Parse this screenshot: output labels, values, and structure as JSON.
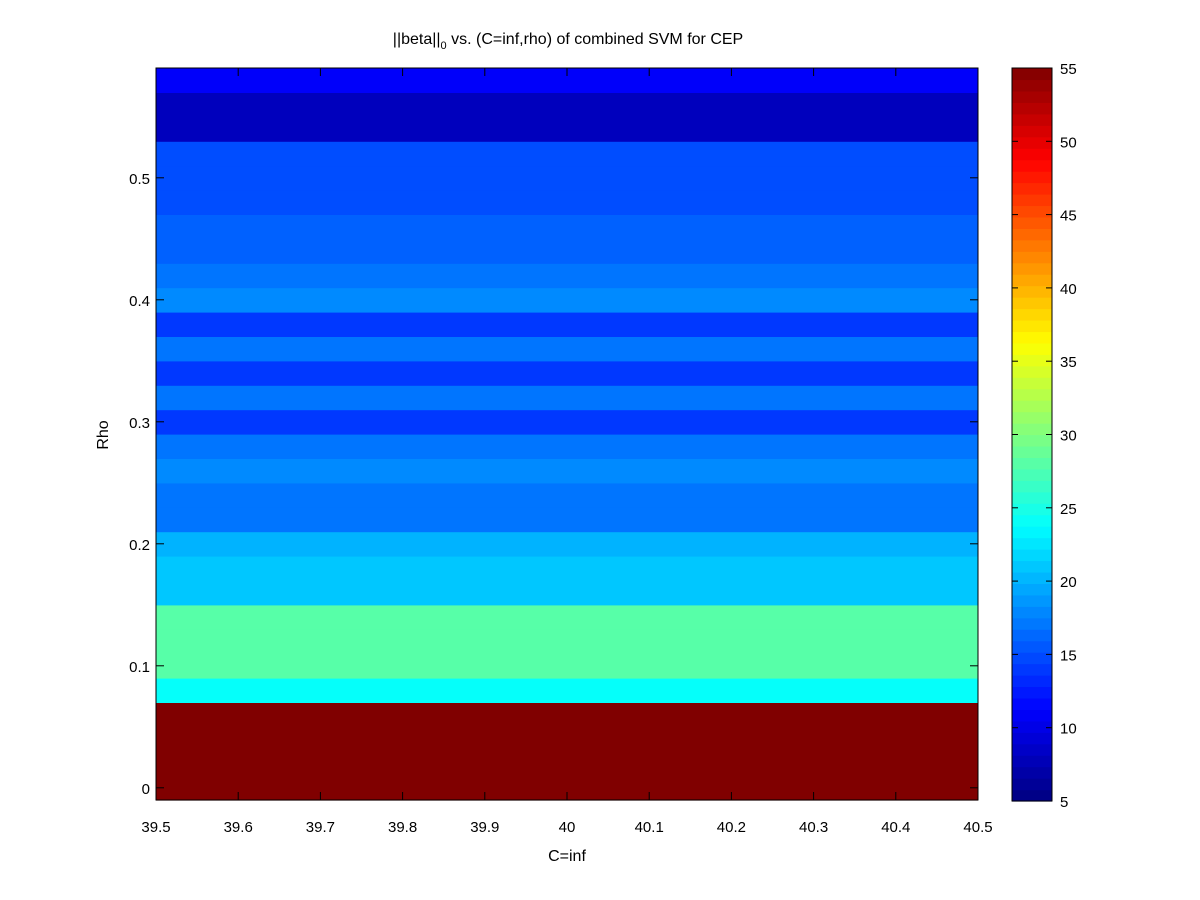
{
  "chart_data": {
    "type": "heatmap",
    "title": {
      "prefix": "||beta||",
      "subscript": "0",
      "suffix": " vs. (C=inf,rho) of combined SVM for CEP"
    },
    "xlabel": "C=inf",
    "ylabel": "Rho",
    "xlim": [
      39.5,
      40.5
    ],
    "ylim": [
      -0.01,
      0.59
    ],
    "xticks": [
      39.5,
      39.6,
      39.7,
      39.8,
      39.9,
      40,
      40.1,
      40.2,
      40.3,
      40.4,
      40.5
    ],
    "xtick_labels": [
      "39.5",
      "39.6",
      "39.7",
      "39.8",
      "39.9",
      "40",
      "40.1",
      "40.2",
      "40.3",
      "40.4",
      "40.5"
    ],
    "yticks": [
      0,
      0.1,
      0.2,
      0.3,
      0.4,
      0.5
    ],
    "ytick_labels": [
      "0",
      "0.1",
      "0.2",
      "0.3",
      "0.4",
      "0.5"
    ],
    "colormap": "jet",
    "colorbar": {
      "clim": [
        5,
        55
      ],
      "ticks": [
        5,
        10,
        15,
        20,
        25,
        30,
        35,
        40,
        45,
        50,
        55
      ],
      "tick_labels": [
        "5",
        "10",
        "15",
        "20",
        "25",
        "30",
        "35",
        "40",
        "45",
        "50",
        "55"
      ]
    },
    "rho": [
      0.0,
      0.02,
      0.04,
      0.06,
      0.08,
      0.1,
      0.12,
      0.14,
      0.16,
      0.18,
      0.2,
      0.22,
      0.24,
      0.26,
      0.28,
      0.3,
      0.32,
      0.34,
      0.36,
      0.38,
      0.4,
      0.42,
      0.44,
      0.46,
      0.48,
      0.5,
      0.52,
      0.54,
      0.56,
      0.58
    ],
    "values": [
      55,
      55,
      55,
      55,
      24,
      28,
      28,
      28,
      21,
      21,
      20,
      17,
      17,
      18,
      17,
      14,
      17,
      14,
      17,
      14,
      18,
      17,
      16,
      16,
      15,
      15,
      15,
      8,
      8,
      11
    ]
  }
}
